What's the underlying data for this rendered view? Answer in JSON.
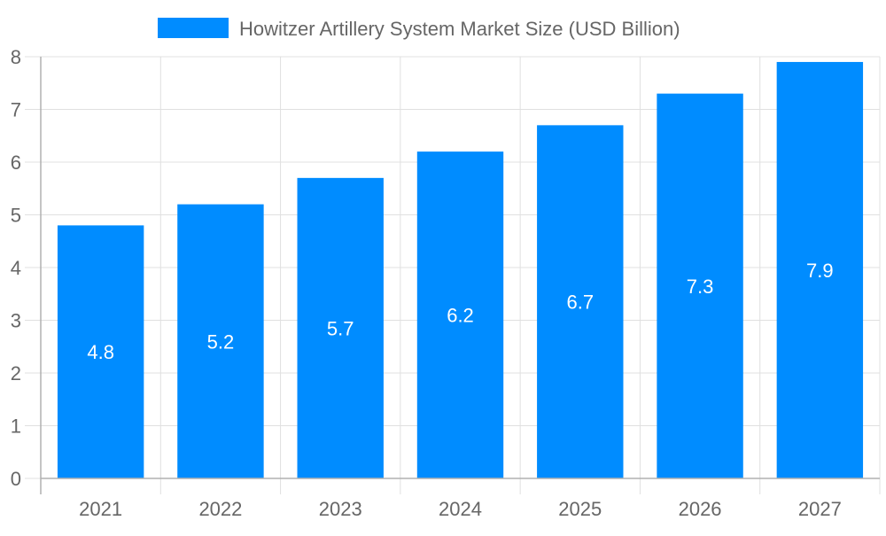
{
  "chart_data": {
    "type": "bar",
    "categories": [
      "2021",
      "2022",
      "2023",
      "2024",
      "2025",
      "2026",
      "2027"
    ],
    "series": [
      {
        "name": "Howitzer Artillery System Market Size (USD Billion)",
        "values": [
          4.8,
          5.2,
          5.7,
          6.2,
          6.7,
          7.3,
          7.9
        ]
      }
    ],
    "data_labels": [
      "4.8",
      "5.2",
      "5.7",
      "6.2",
      "6.7",
      "7.3",
      "7.9"
    ],
    "ylim": [
      0,
      8
    ],
    "yticks": [
      "0",
      "1",
      "2",
      "3",
      "4",
      "5",
      "6",
      "7",
      "8"
    ],
    "grid": true,
    "legend": "top",
    "colors": {
      "bar": "#008cff",
      "grid": "#e0e0e0",
      "axis": "#b0b0b0",
      "text": "#666666",
      "label": "#ffffff"
    }
  }
}
